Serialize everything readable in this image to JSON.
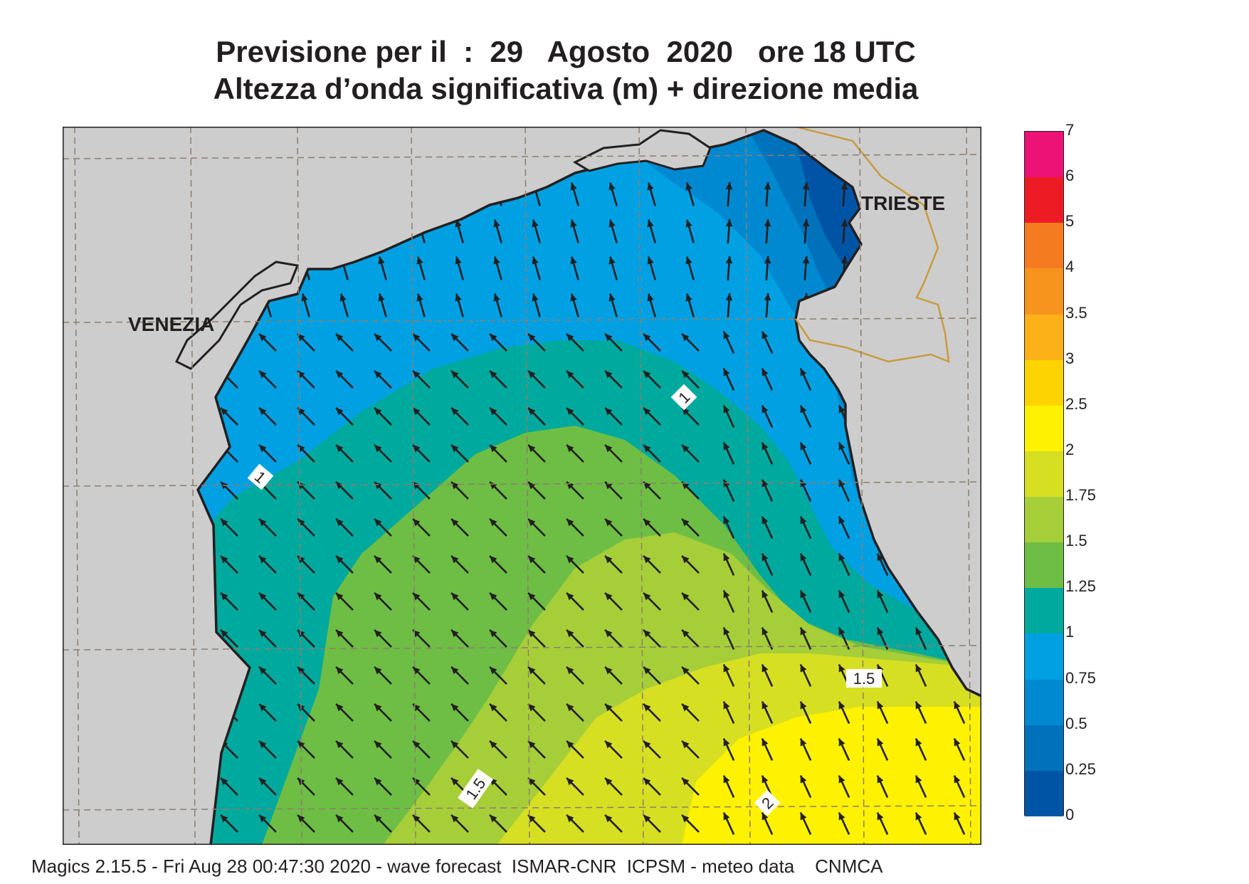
{
  "title_line1": "Previsione per il  :  29   Agosto  2020   ore 18 UTC",
  "title_line2": "Altezza d’onda significativa (m) + direzione media",
  "places": {
    "venezia": "VENEZIA",
    "trieste": "TRIESTE"
  },
  "contour_labels": [
    "1",
    "1",
    "1.5",
    "1.5",
    "2"
  ],
  "legend": {
    "ticks": [
      "7",
      "6",
      "5",
      "4",
      "3.5",
      "3",
      "2.5",
      "2",
      "1.75",
      "1.5",
      "1.25",
      "1",
      "0.75",
      "0.5",
      "0.25",
      "0"
    ],
    "colors": [
      "#ed1275",
      "#ed1c24",
      "#f47b20",
      "#f7941d",
      "#fbb117",
      "#fdd400",
      "#fff200",
      "#d7df23",
      "#a6ce39",
      "#6ebe45",
      "#00a99d",
      "#00a0e3",
      "#0089d0",
      "#0072bc",
      "#0054a6"
    ]
  },
  "colors": {
    "land": "#cdcdcd",
    "border": "#c99a3e",
    "arrows": "#231f20"
  },
  "wave_direction": "north-west",
  "footer": "Magics 2.15.5 - Fri Aug 28 00:47:30 2020 - wave forecast  ISMAR-CNR  ICPSM - meteo data    CNMCA"
}
